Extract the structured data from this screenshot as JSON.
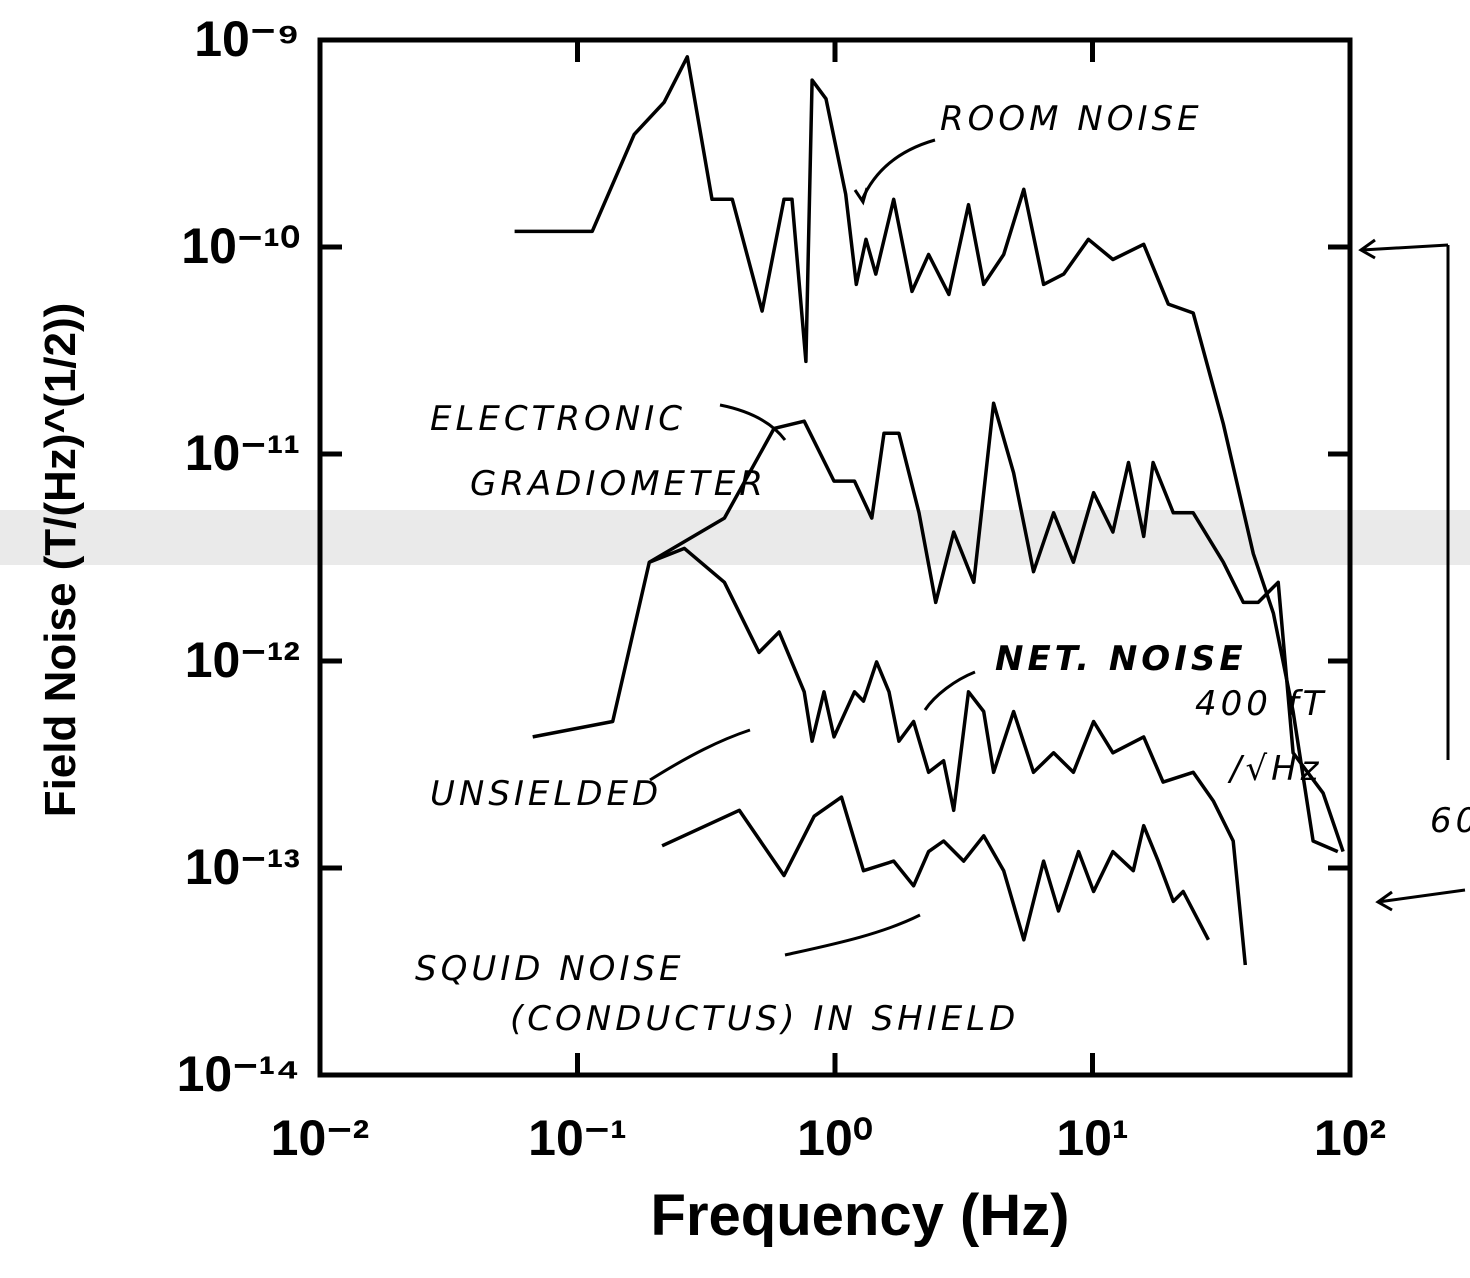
{
  "chart_data": {
    "type": "line",
    "xlabel": "Frequency (Hz)",
    "ylabel": "Field Noise (T/(Hz)^(1/2))",
    "xscale": "log",
    "yscale": "log",
    "xlim": [
      0.01,
      100
    ],
    "ylim": [
      1e-14,
      1e-09
    ],
    "xticks": [
      {
        "value": 0.01,
        "label": "10⁻²"
      },
      {
        "value": 0.1,
        "label": "10⁻¹"
      },
      {
        "value": 1,
        "label": "10⁰"
      },
      {
        "value": 10,
        "label": "10¹"
      },
      {
        "value": 100,
        "label": "10²"
      }
    ],
    "yticks": [
      {
        "value": 1e-14,
        "label": "10⁻¹⁴"
      },
      {
        "value": 1e-13,
        "label": "10⁻¹³"
      },
      {
        "value": 1e-12,
        "label": "10⁻¹²"
      },
      {
        "value": 1e-11,
        "label": "10⁻¹¹"
      },
      {
        "value": 1e-10,
        "label": "10⁻¹⁰"
      },
      {
        "value": 1e-09,
        "label": "10⁻⁹"
      }
    ],
    "series": [
      {
        "color": "#000000",
        "x": [
          0.057,
          0.114,
          0.166,
          0.217,
          0.267,
          0.333,
          0.399,
          0.521,
          0.634,
          0.681,
          0.771,
          0.815,
          0.923,
          1.1,
          1.21,
          1.32,
          1.44,
          1.69,
          1.99,
          2.31,
          2.77,
          3.3,
          3.78,
          4.52,
          5.41,
          6.46,
          7.73,
          9.64,
          12.0,
          15.8,
          19.7,
          24.6,
          32.2,
          42.1,
          50.4,
          60.1,
          71.9,
          89.7
        ],
        "values": [
          1.19e-10,
          1.19e-10,
          3.5e-10,
          5e-10,
          8.3e-10,
          1.7e-10,
          1.7e-10,
          4.9e-11,
          1.7e-10,
          1.7e-10,
          2.8e-11,
          6.4e-10,
          5.2e-10,
          1.8e-10,
          6.6e-11,
          1.09e-10,
          7.4e-11,
          1.7e-10,
          6.1e-11,
          9.2e-11,
          5.9e-11,
          1.6e-10,
          6.6e-11,
          9.2e-11,
          1.9e-10,
          6.6e-11,
          7.4e-11,
          1.09e-10,
          8.7e-11,
          1.03e-10,
          5.3e-11,
          4.8e-11,
          1.4e-11,
          3.3e-12,
          1.7e-12,
          5.7e-13,
          1.35e-13,
          1.2e-13
        ]
      },
      {
        "color": "#000000",
        "x": [
          0.19,
          0.372,
          0.58,
          0.759,
          0.991,
          1.19,
          1.39,
          1.55,
          1.77,
          2.12,
          2.46,
          2.89,
          3.46,
          4.13,
          4.94,
          5.9,
          7.06,
          8.43,
          10.1,
          12.0,
          13.8,
          15.8,
          17.2,
          20.6,
          24.6,
          32.2,
          38.5,
          44.0,
          52.6,
          60.1,
          78.6,
          94.0
        ],
        "values": [
          3e-12,
          4.9e-12,
          1.33e-11,
          1.44e-11,
          7.4e-12,
          7.4e-12,
          4.9e-12,
          1.26e-11,
          1.26e-11,
          5.2e-12,
          1.92e-12,
          4.2e-12,
          2.4e-12,
          1.76e-11,
          8.1e-12,
          2.7e-12,
          5.2e-12,
          3e-12,
          6.5e-12,
          4.2e-12,
          9.1e-12,
          4e-12,
          9.1e-12,
          5.2e-12,
          5.2e-12,
          3e-12,
          1.92e-12,
          1.92e-12,
          2.4e-12,
          3.6e-13,
          2.3e-13,
          1.2e-13
        ]
      },
      {
        "color": "#000000",
        "x": [
          0.067,
          0.137,
          0.19,
          0.26,
          0.372,
          0.507,
          0.607,
          0.759,
          0.815,
          0.906,
          0.991,
          1.19,
          1.29,
          1.45,
          1.62,
          1.77,
          2.02,
          2.31,
          2.64,
          2.89,
          3.3,
          3.78,
          4.13,
          4.94,
          5.9,
          7.06,
          8.43,
          10.1,
          12.0,
          15.8,
          18.8,
          24.6,
          29.5,
          35.2,
          39.2
        ],
        "values": [
          4.3e-13,
          5.1e-13,
          3e-12,
          3.5e-12,
          2.4e-12,
          1.1e-12,
          1.38e-12,
          7.1e-13,
          4.1e-13,
          7.1e-13,
          4.3e-13,
          7.1e-13,
          6.4e-13,
          9.9e-13,
          7.1e-13,
          4.1e-13,
          5.1e-13,
          2.9e-13,
          3.3e-13,
          1.9e-13,
          7.1e-13,
          5.7e-13,
          2.9e-13,
          5.7e-13,
          2.9e-13,
          3.6e-13,
          2.9e-13,
          5.1e-13,
          3.6e-13,
          4.3e-13,
          2.6e-13,
          2.9e-13,
          2.1e-13,
          1.35e-13,
          3.4e-14
        ]
      },
      {
        "color": "#000000",
        "x": [
          0.213,
          0.425,
          0.634,
          0.83,
          1.06,
          1.29,
          1.69,
          2.02,
          2.31,
          2.64,
          3.16,
          3.78,
          4.52,
          5.41,
          6.46,
          7.38,
          8.83,
          10.1,
          12.0,
          14.4,
          15.8,
          18.0,
          20.6,
          22.5,
          28.2
        ],
        "values": [
          1.28e-13,
          1.9e-13,
          9.2e-14,
          1.78e-13,
          2.2e-13,
          9.7e-14,
          1.08e-13,
          8.2e-14,
          1.2e-13,
          1.35e-13,
          1.08e-13,
          1.43e-13,
          9.7e-14,
          4.5e-14,
          1.08e-13,
          6.2e-14,
          1.2e-13,
          7.7e-14,
          1.2e-13,
          9.7e-14,
          1.6e-13,
          1.08e-13,
          6.9e-14,
          7.7e-14,
          4.5e-14
        ]
      }
    ],
    "annotations": [
      "ROOM NOISE",
      "ELECTRONIC",
      "GRADIOMETER",
      "NET. NOISE",
      "400 fT",
      "/√Hz",
      "UNSIELDED",
      "SQUID NOISE",
      "(CONDUCTUS) IN SHIELD",
      "60"
    ]
  }
}
